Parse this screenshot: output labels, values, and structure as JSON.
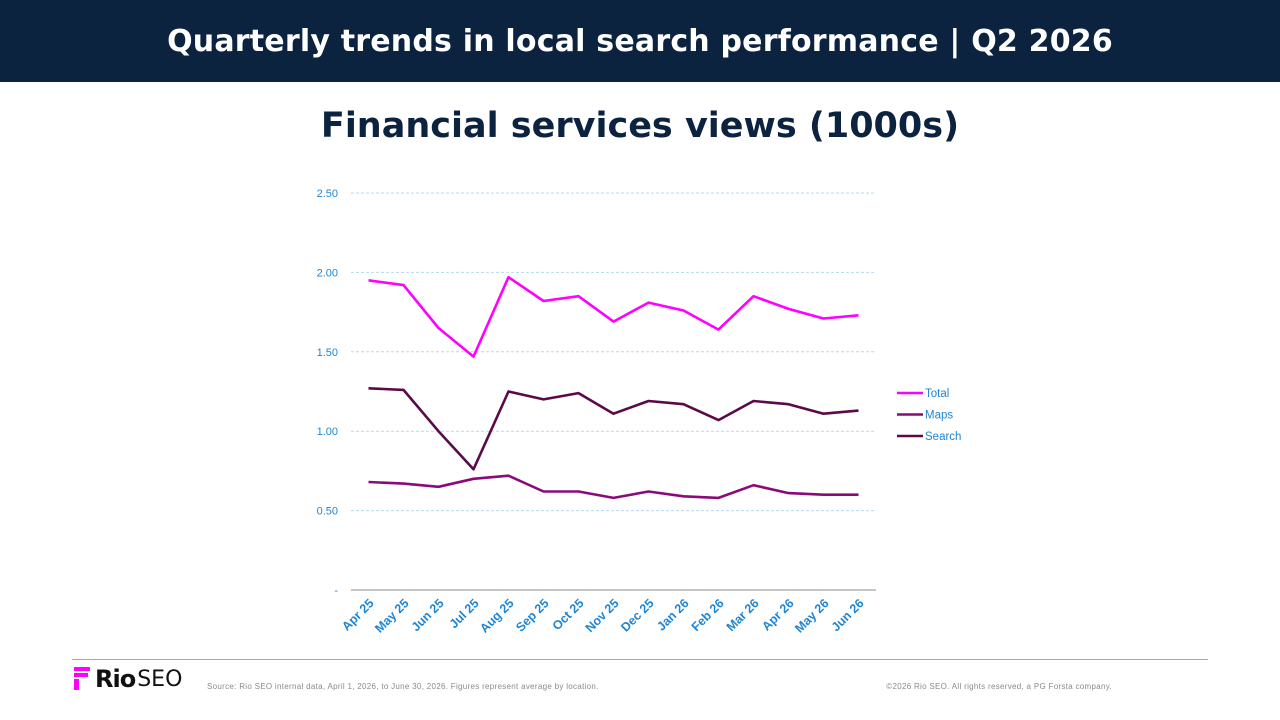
{
  "header": {
    "title": "Quarterly trends in local search performance  |  Q2 2026"
  },
  "chart_data": {
    "type": "line",
    "title": "Financial services views (1000s)",
    "xlabel": "",
    "ylabel": "",
    "categories": [
      "Apr 25",
      "May 25",
      "Jun 25",
      "Jul 25",
      "Aug 25",
      "Sep 25",
      "Oct 25",
      "Nov 25",
      "Dec 25",
      "Jan 26",
      "Feb 26",
      "Mar 26",
      "Apr 26",
      "May 26",
      "Jun 26"
    ],
    "ylim": [
      0,
      2.5
    ],
    "yticks": [
      {
        "value": 0,
        "label": "-"
      },
      {
        "value": 0.5,
        "label": "0.50"
      },
      {
        "value": 1.0,
        "label": "1.00"
      },
      {
        "value": 1.5,
        "label": "1.50"
      },
      {
        "value": 2.0,
        "label": "2.00"
      },
      {
        "value": 2.5,
        "label": "2.50"
      }
    ],
    "grid": true,
    "legend_position": "right",
    "series": [
      {
        "name": "Total",
        "color": "#ff00ff",
        "values": [
          1.95,
          1.92,
          1.65,
          1.47,
          1.97,
          1.82,
          1.85,
          1.69,
          1.81,
          1.76,
          1.64,
          1.85,
          1.77,
          1.71,
          1.73
        ]
      },
      {
        "name": "Maps",
        "color": "#8b0a7a",
        "values": [
          0.68,
          0.67,
          0.65,
          0.7,
          0.72,
          0.62,
          0.62,
          0.58,
          0.62,
          0.59,
          0.58,
          0.66,
          0.61,
          0.6,
          0.6
        ]
      },
      {
        "name": "Search",
        "color": "#5a0a4a",
        "values": [
          1.27,
          1.26,
          1.0,
          0.76,
          1.25,
          1.2,
          1.24,
          1.11,
          1.19,
          1.17,
          1.07,
          1.19,
          1.17,
          1.11,
          1.13
        ]
      }
    ]
  },
  "footer": {
    "logo_rio": "Rio",
    "logo_seo": "SEO",
    "source": "Source: Rio SEO internal data, April 1, 2026, to June 30, 2026. Figures represent average by location.",
    "copyright": "©2026 Rio SEO. All rights reserved, a PG Forsta company."
  },
  "colors": {
    "header_bg": "#0c2340",
    "axis_text": "#1f86d4",
    "brand_magenta": "#ff00ff"
  }
}
